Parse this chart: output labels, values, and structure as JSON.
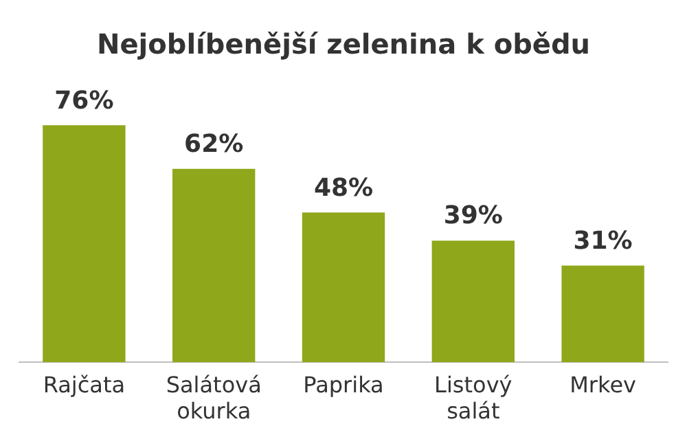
{
  "chart_data": {
    "type": "bar",
    "title": "Nejoblíbenější zelenina k obědu",
    "categories": [
      "Rajčata",
      "Salátová okurka",
      "Paprika",
      "Listový salát",
      "Mrkev"
    ],
    "values": [
      76,
      62,
      48,
      39,
      31
    ],
    "value_labels": [
      "76%",
      "62%",
      "48%",
      "39%",
      "31%"
    ],
    "color": "#8fa71a",
    "grid": false,
    "legend": false
  }
}
